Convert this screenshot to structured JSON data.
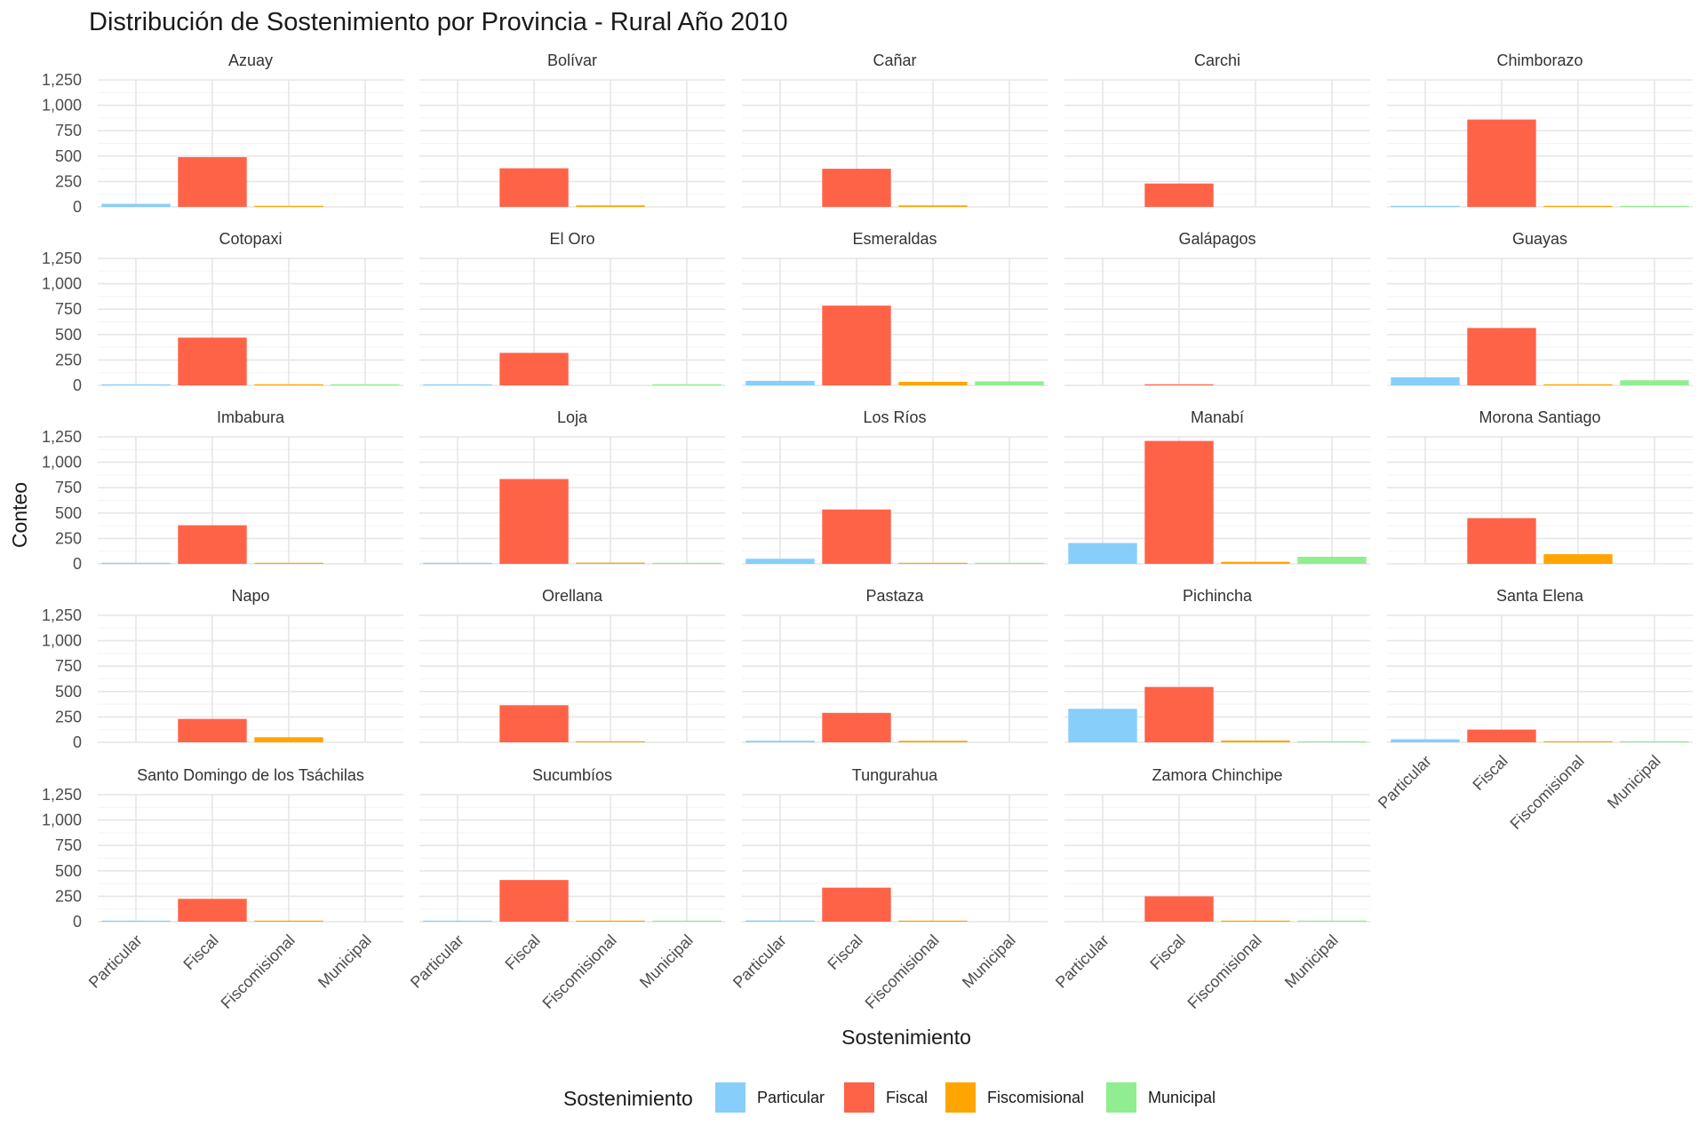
{
  "chart_data": {
    "type": "bar",
    "title": "Distribución de Sostenimiento por Provincia - Rural Año 2010",
    "xlabel": "Sostenimiento",
    "ylabel": "Conteo",
    "ylim": [
      0,
      1250
    ],
    "yticks": [
      0,
      250,
      500,
      750,
      1000,
      1250
    ],
    "ytick_labels": [
      "0",
      "250",
      "500",
      "750",
      "1,000",
      "1,250"
    ],
    "categories": [
      "Particular",
      "Fiscal",
      "Fiscomisional",
      "Municipal"
    ],
    "colors": {
      "Particular": "#87CEFA",
      "Fiscal": "#FF6347",
      "Fiscomisional": "#FFA500",
      "Municipal": "#90EE90"
    },
    "grid": true,
    "legend_title": "Sostenimiento",
    "legend_position": "bottom",
    "panels": [
      {
        "name": "Azuay",
        "values": {
          "Particular": 30,
          "Fiscal": 490,
          "Fiscomisional": 5
        }
      },
      {
        "name": "Bolívar",
        "values": {
          "Fiscal": 380,
          "Fiscomisional": 15
        }
      },
      {
        "name": "Cañar",
        "values": {
          "Fiscal": 375,
          "Fiscomisional": 15
        }
      },
      {
        "name": "Carchi",
        "values": {
          "Fiscal": 230
        }
      },
      {
        "name": "Chimborazo",
        "values": {
          "Particular": 5,
          "Fiscal": 860,
          "Fiscomisional": 10,
          "Municipal": 5
        }
      },
      {
        "name": "Cotopaxi",
        "values": {
          "Particular": 8,
          "Fiscal": 470,
          "Fiscomisional": 8,
          "Municipal": 5
        }
      },
      {
        "name": "El Oro",
        "values": {
          "Particular": 5,
          "Fiscal": 320,
          "Municipal": 5
        }
      },
      {
        "name": "Esmeraldas",
        "values": {
          "Particular": 45,
          "Fiscal": 785,
          "Fiscomisional": 35,
          "Municipal": 40
        }
      },
      {
        "name": "Galápagos",
        "values": {
          "Fiscal": 10
        }
      },
      {
        "name": "Guayas",
        "values": {
          "Particular": 80,
          "Fiscal": 565,
          "Fiscomisional": 10,
          "Municipal": 50
        }
      },
      {
        "name": "Imbabura",
        "values": {
          "Particular": 8,
          "Fiscal": 380,
          "Fiscomisional": 5
        }
      },
      {
        "name": "Loja",
        "values": {
          "Particular": 5,
          "Fiscal": 835,
          "Fiscomisional": 12,
          "Municipal": 8
        }
      },
      {
        "name": "Los Ríos",
        "values": {
          "Particular": 50,
          "Fiscal": 535,
          "Fiscomisional": 5,
          "Municipal": 8
        }
      },
      {
        "name": "Manabí",
        "values": {
          "Particular": 205,
          "Fiscal": 1210,
          "Fiscomisional": 20,
          "Municipal": 70
        }
      },
      {
        "name": "Morona Santiago",
        "values": {
          "Fiscal": 450,
          "Fiscomisional": 95
        }
      },
      {
        "name": "Napo",
        "values": {
          "Fiscal": 230,
          "Fiscomisional": 50
        }
      },
      {
        "name": "Orellana",
        "values": {
          "Fiscal": 365,
          "Fiscomisional": 8
        }
      },
      {
        "name": "Pastaza",
        "values": {
          "Particular": 15,
          "Fiscal": 290,
          "Fiscomisional": 15
        }
      },
      {
        "name": "Pichincha",
        "values": {
          "Particular": 330,
          "Fiscal": 545,
          "Fiscomisional": 18,
          "Municipal": 10
        }
      },
      {
        "name": "Santa Elena",
        "values": {
          "Particular": 30,
          "Fiscal": 125,
          "Fiscomisional": 5,
          "Municipal": 3
        }
      },
      {
        "name": "Santo Domingo de los Tsáchilas",
        "values": {
          "Particular": 10,
          "Fiscal": 225,
          "Fiscomisional": 3
        }
      },
      {
        "name": "Sucumbíos",
        "values": {
          "Particular": 3,
          "Fiscal": 410,
          "Fiscomisional": 5,
          "Municipal": 3
        }
      },
      {
        "name": "Tungurahua",
        "values": {
          "Particular": 12,
          "Fiscal": 335,
          "Fiscomisional": 10
        }
      },
      {
        "name": "Zamora Chinchipe",
        "values": {
          "Fiscal": 250,
          "Fiscomisional": 5,
          "Municipal": 3
        }
      }
    ]
  }
}
